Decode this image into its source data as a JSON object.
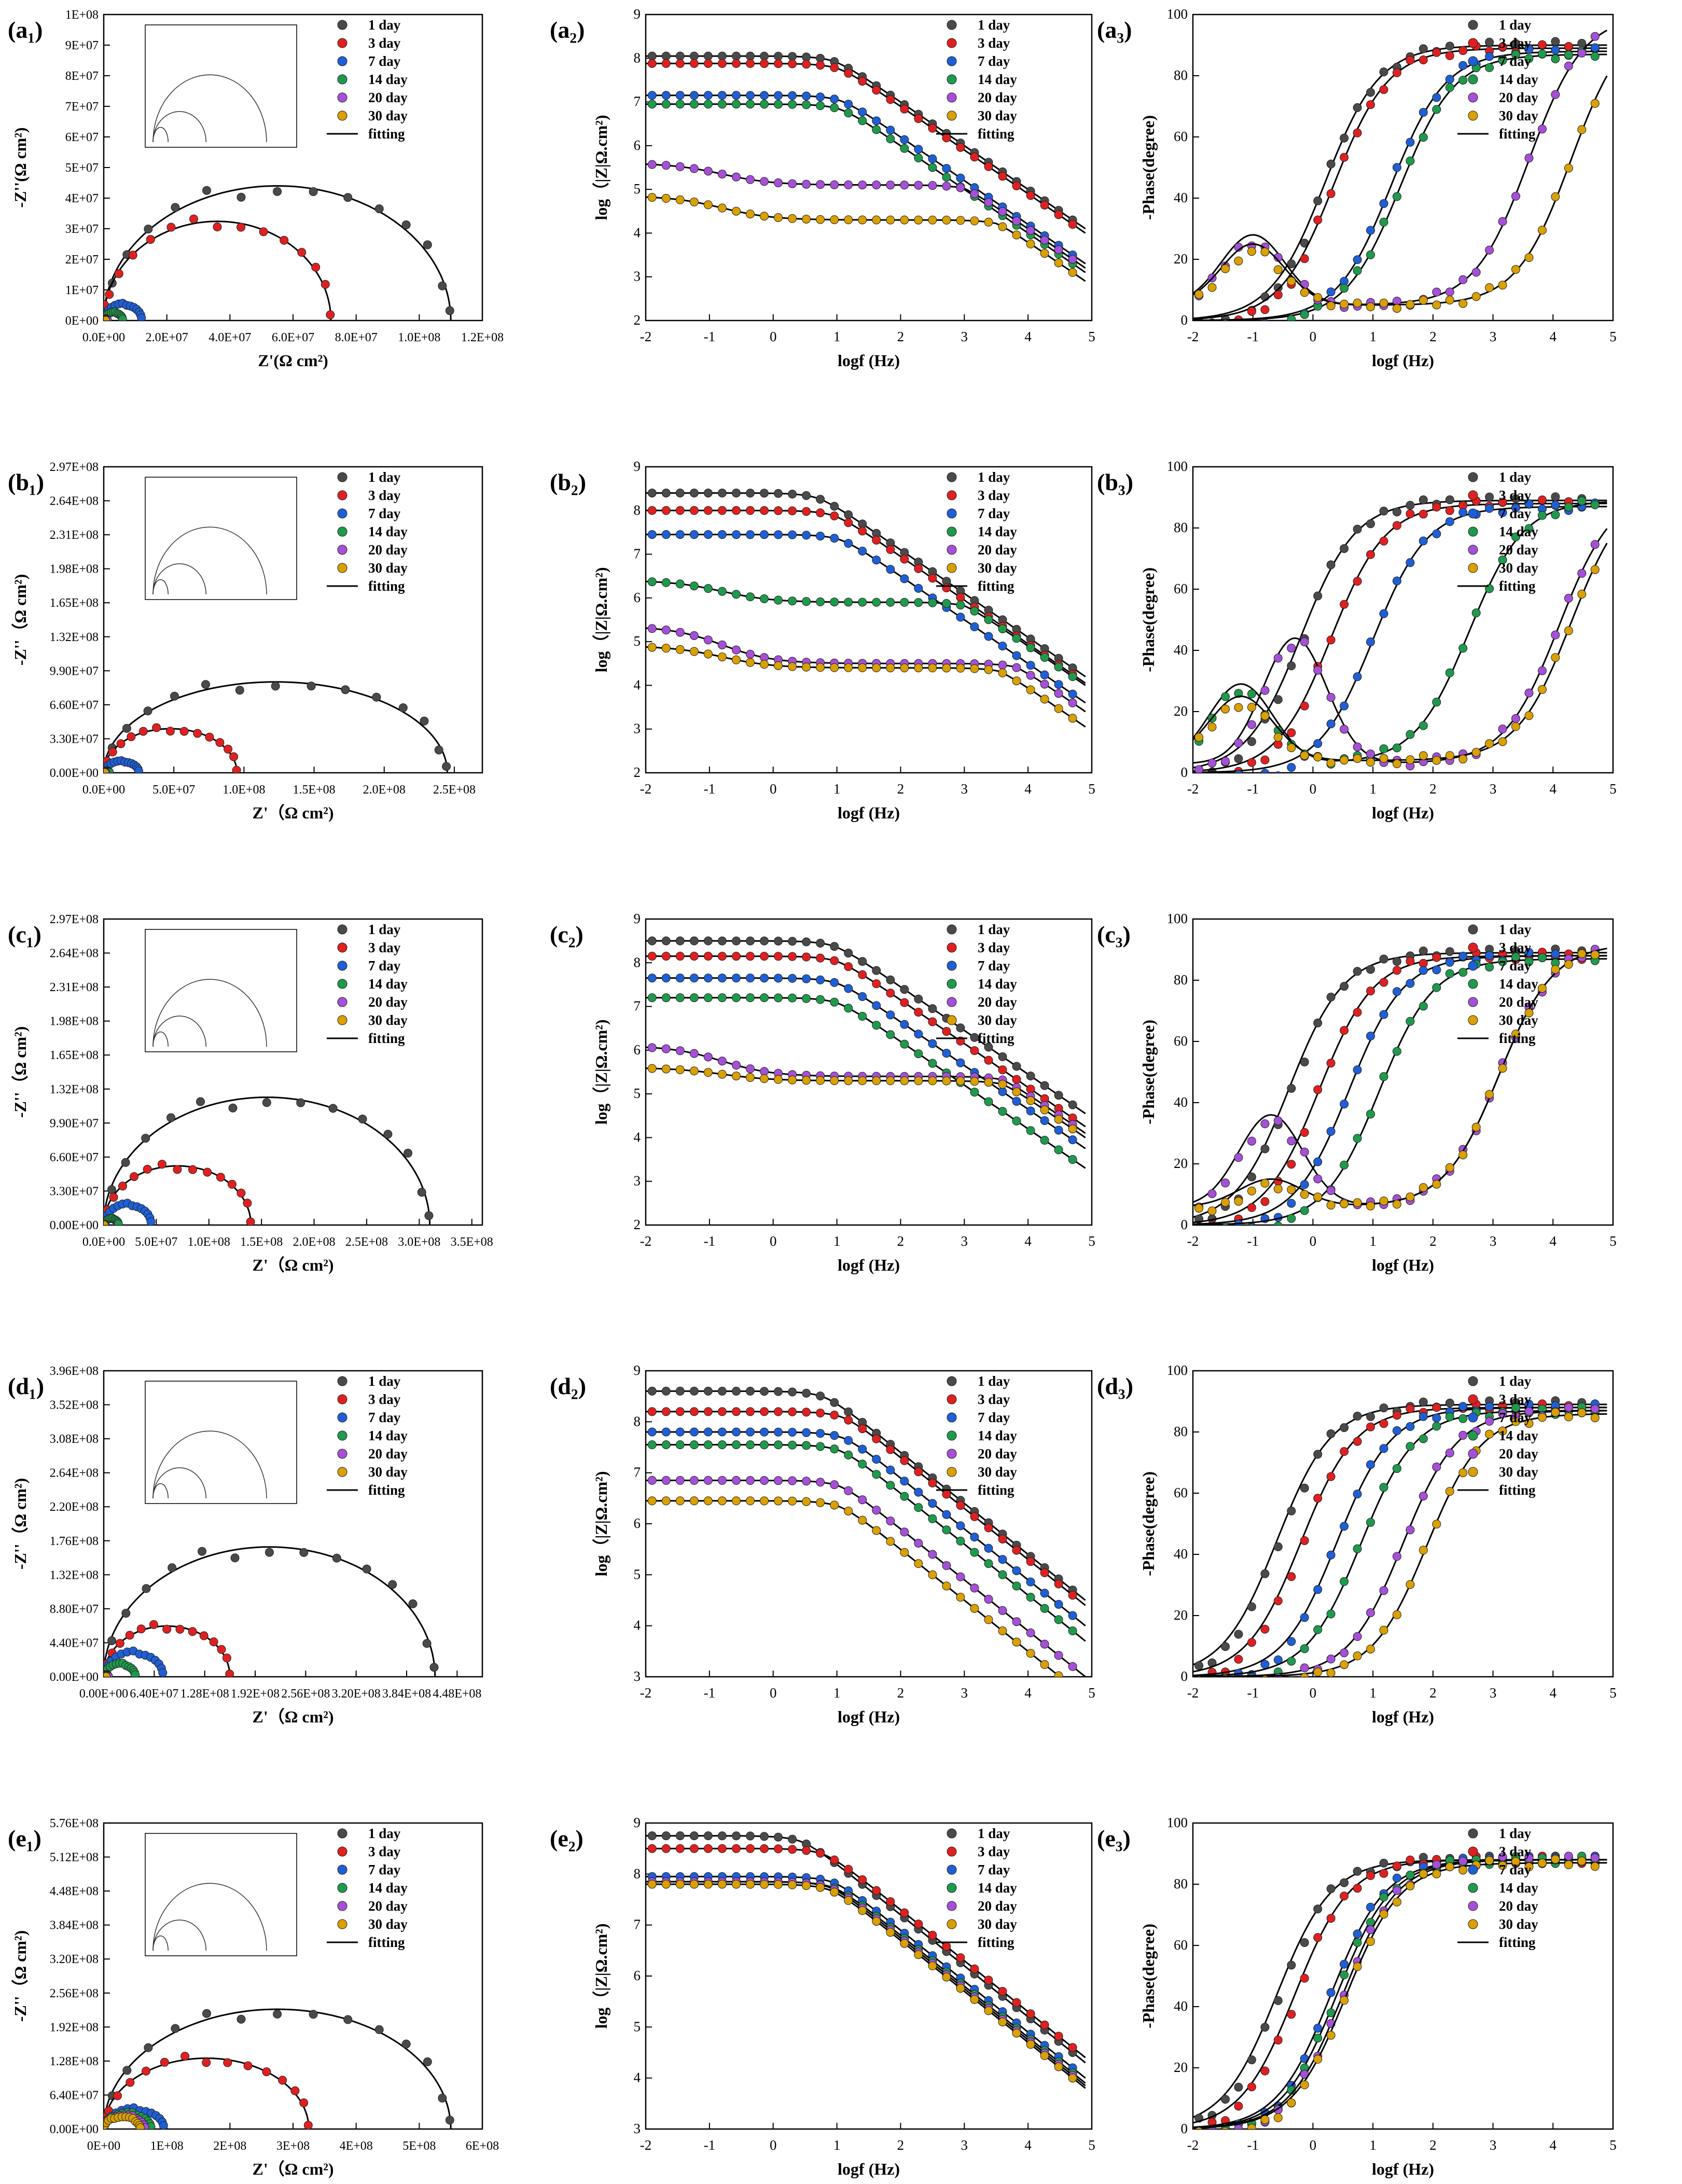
{
  "colors": {
    "d1": "#4a4a4a",
    "d3": "#e02020",
    "d7": "#1f5fd6",
    "d14": "#1f9a4c",
    "d20": "#a64fd8",
    "d30": "#d9a000",
    "fit": "#000000"
  },
  "legend_labels": [
    "1 day",
    "3 day",
    "7 day",
    "14 day",
    "20 day",
    "30 day",
    "fitting"
  ],
  "chart_data": [
    {
      "id": "a1",
      "panel_label": "(a₁)",
      "type": "scatter",
      "kind": "nyquist",
      "xlabel": "Z'(Ω cm²)",
      "ylabel": "-Z''(Ω cm²)",
      "xlim": [
        0,
        120000000
      ],
      "ylim": [
        0,
        100000000
      ],
      "xticks": [
        "0.0E+00",
        "2.0E+07",
        "4.0E+07",
        "6.0E+07",
        "8.0E+07",
        "1.0E+08",
        "1.2E+08"
      ],
      "yticks": [
        "0E+00",
        "1E+07",
        "2E+07",
        "3E+07",
        "4E+07",
        "5E+07",
        "6E+07",
        "7E+07",
        "8E+07",
        "9E+07",
        "1E+08"
      ],
      "series": [
        {
          "name": "1 day",
          "R": 110000000,
          "k": 0.8
        },
        {
          "name": "3 day",
          "R": 72000000,
          "k": 0.9
        },
        {
          "name": "7 day",
          "R": 12000000,
          "k": 0.9
        },
        {
          "name": "14 day",
          "R": 6000000,
          "k": 0.9
        },
        {
          "name": "20 day",
          "R": 1200000,
          "k": 0.9
        },
        {
          "name": "30 day",
          "R": 600000,
          "k": 0.9
        }
      ]
    },
    {
      "id": "a2",
      "panel_label": "(a₂)",
      "type": "line",
      "kind": "bode_mod",
      "xlabel": "logf (Hz)",
      "ylabel": "log（|Z|Ω.cm²)",
      "xlim": [
        -2,
        5
      ],
      "ylim": [
        2,
        9
      ],
      "xticks": [
        "-2",
        "-1",
        "0",
        "1",
        "2",
        "3",
        "4",
        "5"
      ],
      "yticks": [
        "2",
        "3",
        "4",
        "5",
        "6",
        "7",
        "8",
        "9"
      ],
      "series": [
        {
          "name": "1 day",
          "p": [
            8.05,
            8.0
          ]
        },
        {
          "name": "3 day",
          "p": [
            7.88,
            7.9
          ]
        },
        {
          "name": "7 day",
          "p": [
            7.15,
            7.2
          ]
        },
        {
          "name": "14 day",
          "p": [
            6.95,
            7.0
          ]
        },
        {
          "name": "20 day",
          "p": [
            5.6,
            5.1,
            3.2,
            4.9
          ]
        },
        {
          "name": "30 day",
          "p": [
            4.85,
            4.3,
            3.6,
            4.2
          ]
        }
      ]
    },
    {
      "id": "a3",
      "panel_label": "(a₃)",
      "type": "line",
      "kind": "bode_phase",
      "xlabel": "logf (Hz)",
      "ylabel": "-Phase(degree)",
      "xlim": [
        -2,
        5
      ],
      "ylim": [
        0,
        100
      ],
      "xticks": [
        "-2",
        "-1",
        "0",
        "1",
        "2",
        "3",
        "4",
        "5"
      ],
      "yticks": [
        "0",
        "20",
        "40",
        "60",
        "80",
        "100"
      ],
      "series": [
        {
          "name": "1 day",
          "p": [
            0.2,
            90
          ]
        },
        {
          "name": "3 day",
          "p": [
            0.35,
            89
          ]
        },
        {
          "name": "7 day",
          "p": [
            1.3,
            88
          ]
        },
        {
          "name": "14 day",
          "p": [
            1.45,
            87
          ]
        },
        {
          "name": "20 day",
          "p": [
            3.6,
            95,
            -1.0,
            23,
            5
          ]
        },
        {
          "name": "30 day",
          "p": [
            4.3,
            95,
            -1.0,
            20,
            5
          ]
        }
      ]
    },
    {
      "id": "b1",
      "panel_label": "(b₁)",
      "type": "scatter",
      "kind": "nyquist",
      "xlabel": "Z'（Ω cm²)",
      "ylabel": "-Z''（Ω cm²)",
      "xlim": [
        0,
        270000000
      ],
      "ylim": [
        0,
        297000000
      ],
      "xticks": [
        "0.0E+00",
        "5.0E+07",
        "1.0E+08",
        "1.5E+08",
        "2.0E+08",
        "2.5E+08"
      ],
      "yticks": [
        "0.00E+00",
        "3.30E+07",
        "6.60E+07",
        "9.90E+07",
        "1.32E+08",
        "1.65E+08",
        "1.98E+08",
        "2.31E+08",
        "2.64E+08",
        "2.97E+08"
      ],
      "series": [
        {
          "name": "1 day",
          "R": 245000000,
          "k": 0.72
        },
        {
          "name": "3 day",
          "R": 95000000,
          "k": 0.9
        },
        {
          "name": "7 day",
          "R": 25000000,
          "k": 0.9
        },
        {
          "name": "14 day",
          "R": 4000000,
          "k": 0.9
        },
        {
          "name": "20 day",
          "R": 1500000,
          "k": 0.9
        },
        {
          "name": "30 day",
          "R": 800000,
          "k": 0.9
        }
      ]
    },
    {
      "id": "b2",
      "panel_label": "(b₂)",
      "type": "line",
      "kind": "bode_mod",
      "xlabel": "logf (Hz)",
      "ylabel": "log（|Z|Ω.cm²)",
      "xlim": [
        -2,
        5
      ],
      "ylim": [
        2,
        9
      ],
      "xticks": [
        "-2",
        "-1",
        "0",
        "1",
        "2",
        "3",
        "4",
        "5"
      ],
      "yticks": [
        "2",
        "3",
        "4",
        "5",
        "6",
        "7",
        "8",
        "9"
      ],
      "series": [
        {
          "name": "1 day",
          "p": [
            8.4,
            8.1
          ]
        },
        {
          "name": "3 day",
          "p": [
            8.0,
            7.95
          ]
        },
        {
          "name": "7 day",
          "p": [
            7.45,
            7.5
          ]
        },
        {
          "name": "14 day",
          "p": [
            6.4,
            5.9,
            3.0,
            5.9
          ]
        },
        {
          "name": "20 day",
          "p": [
            5.35,
            4.5,
            3.8,
            4.5
          ]
        },
        {
          "name": "30 day",
          "p": [
            4.9,
            4.4,
            3.6,
            4.35
          ]
        }
      ]
    },
    {
      "id": "b3",
      "panel_label": "(b₃)",
      "type": "line",
      "kind": "bode_phase",
      "xlabel": "logf (Hz)",
      "ylabel": "-Phase(degree)",
      "xlim": [
        -2,
        5
      ],
      "ylim": [
        0,
        100
      ],
      "xticks": [
        "-2",
        "-1",
        "0",
        "1",
        "2",
        "3",
        "4",
        "5"
      ],
      "yticks": [
        "0",
        "20",
        "40",
        "60",
        "80",
        "100"
      ],
      "series": [
        {
          "name": "1 day",
          "p": [
            -0.2,
            89
          ]
        },
        {
          "name": "3 day",
          "p": [
            0.3,
            88
          ]
        },
        {
          "name": "7 day",
          "p": [
            1.0,
            87
          ]
        },
        {
          "name": "14 day",
          "p": [
            2.6,
            86,
            -1.2,
            26,
            3
          ]
        },
        {
          "name": "20 day",
          "p": [
            4.1,
            90,
            -0.3,
            41,
            3
          ]
        },
        {
          "name": "30 day",
          "p": [
            4.3,
            90,
            -1.2,
            21,
            4
          ]
        }
      ]
    },
    {
      "id": "c1",
      "panel_label": "(c₁)",
      "type": "scatter",
      "kind": "nyquist",
      "xlabel": "Z'（Ω cm²)",
      "ylabel": "-Z''（Ω cm²)",
      "xlim": [
        0,
        360000000
      ],
      "ylim": [
        0,
        297000000
      ],
      "xticks": [
        "0.0E+00",
        "5.0E+07",
        "1.0E+08",
        "1.5E+08",
        "2.0E+08",
        "2.5E+08",
        "3.0E+08",
        "3.5E+08"
      ],
      "yticks": [
        "0.00E+00",
        "3.30E+07",
        "6.60E+07",
        "9.90E+07",
        "1.32E+08",
        "1.65E+08",
        "1.98E+08",
        "2.31E+08",
        "2.64E+08",
        "2.97E+08"
      ],
      "series": [
        {
          "name": "1 day",
          "R": 310000000,
          "k": 0.8
        },
        {
          "name": "3 day",
          "R": 140000000,
          "k": 0.82
        },
        {
          "name": "7 day",
          "R": 45000000,
          "k": 0.9
        },
        {
          "name": "14 day",
          "R": 14000000,
          "k": 0.9
        },
        {
          "name": "20 day",
          "R": 1200000,
          "k": 0.9
        },
        {
          "name": "30 day",
          "R": 400000,
          "k": 0.9
        }
      ]
    },
    {
      "id": "c2",
      "panel_label": "(c₂)",
      "type": "line",
      "kind": "bode_mod",
      "xlabel": "logf (Hz)",
      "ylabel": "log（|Z|Ω.cm²)",
      "xlim": [
        -2,
        5
      ],
      "ylim": [
        2,
        9
      ],
      "xticks": [
        "-2",
        "-1",
        "0",
        "1",
        "2",
        "3",
        "4",
        "5"
      ],
      "yticks": [
        "2",
        "3",
        "4",
        "5",
        "6",
        "7",
        "8",
        "9"
      ],
      "series": [
        {
          "name": "1 day",
          "p": [
            8.5,
            8.45
          ]
        },
        {
          "name": "3 day",
          "p": [
            8.15,
            8.15
          ]
        },
        {
          "name": "7 day",
          "p": [
            7.65,
            7.65
          ]
        },
        {
          "name": "14 day",
          "p": [
            7.2,
            7.2
          ]
        },
        {
          "name": "20 day",
          "p": [
            6.1,
            5.4,
            3.6,
            5.4
          ]
        },
        {
          "name": "30 day",
          "p": [
            5.6,
            5.3,
            3.6,
            5.3
          ]
        }
      ]
    },
    {
      "id": "c3",
      "panel_label": "(c₃)",
      "type": "line",
      "kind": "bode_phase",
      "xlabel": "logf (Hz)",
      "ylabel": "-Phase(degree)",
      "xlim": [
        -2,
        5
      ],
      "ylim": [
        0,
        100
      ],
      "xticks": [
        "-2",
        "-1",
        "0",
        "1",
        "2",
        "3",
        "4",
        "5"
      ],
      "yticks": [
        "0",
        "20",
        "40",
        "60",
        "80",
        "100"
      ],
      "series": [
        {
          "name": "1 day",
          "p": [
            -0.4,
            89
          ]
        },
        {
          "name": "3 day",
          "p": [
            0.1,
            88
          ]
        },
        {
          "name": "7 day",
          "p": [
            0.6,
            88
          ]
        },
        {
          "name": "14 day",
          "p": [
            1.1,
            87
          ]
        },
        {
          "name": "20 day",
          "p": [
            3.1,
            86,
            -0.7,
            30,
            6
          ]
        },
        {
          "name": "30 day",
          "p": [
            3.1,
            86,
            -0.7,
            9,
            6
          ]
        }
      ]
    },
    {
      "id": "d1",
      "panel_label": "(d₁)",
      "type": "scatter",
      "kind": "nyquist",
      "xlabel": "Z'（Ω cm²)",
      "ylabel": "-Z''（Ω cm²)",
      "xlim": [
        0,
        480000000
      ],
      "ylim": [
        0,
        396000000
      ],
      "xticks": [
        "0.00E+00",
        "6.40E+07",
        "1.28E+08",
        "1.92E+08",
        "2.56E+08",
        "3.20E+08",
        "3.84E+08",
        "4.48E+08"
      ],
      "yticks": [
        "0.00E+00",
        "4.40E+07",
        "8.80E+07",
        "1.32E+08",
        "1.76E+08",
        "2.20E+08",
        "2.64E+08",
        "3.08E+08",
        "3.52E+08",
        "3.96E+08"
      ],
      "series": [
        {
          "name": "1 day",
          "R": 420000000,
          "k": 0.8
        },
        {
          "name": "3 day",
          "R": 160000000,
          "k": 0.82
        },
        {
          "name": "7 day",
          "R": 75000000,
          "k": 0.85
        },
        {
          "name": "14 day",
          "R": 40000000,
          "k": 0.85
        },
        {
          "name": "20 day",
          "R": 6000000,
          "k": 0.9
        },
        {
          "name": "30 day",
          "R": 3000000,
          "k": 0.9
        }
      ]
    },
    {
      "id": "d2",
      "panel_label": "(d₂)",
      "type": "line",
      "kind": "bode_mod",
      "xlabel": "logf (Hz)",
      "ylabel": "log（|Z|Ω.cm²)",
      "xlim": [
        -2,
        5
      ],
      "ylim": [
        3,
        9
      ],
      "xticks": [
        "-2",
        "-1",
        "0",
        "1",
        "2",
        "3",
        "4",
        "5"
      ],
      "yticks": [
        "3",
        "4",
        "5",
        "6",
        "7",
        "8",
        "9"
      ],
      "series": [
        {
          "name": "1 day",
          "p": [
            8.6,
            8.4
          ]
        },
        {
          "name": "3 day",
          "p": [
            8.2,
            8.3
          ]
        },
        {
          "name": "7 day",
          "p": [
            7.8,
            7.9
          ]
        },
        {
          "name": "14 day",
          "p": [
            7.55,
            7.6
          ]
        },
        {
          "name": "20 day",
          "p": [
            6.85,
            6.9
          ]
        },
        {
          "name": "30 day",
          "p": [
            6.45,
            6.5
          ]
        }
      ]
    },
    {
      "id": "d3",
      "panel_label": "(d₃)",
      "type": "line",
      "kind": "bode_phase",
      "xlabel": "logf (Hz)",
      "ylabel": "-Phase(degree)",
      "xlim": [
        -2,
        5
      ],
      "ylim": [
        0,
        100
      ],
      "xticks": [
        "-2",
        "-1",
        "0",
        "1",
        "2",
        "3",
        "4",
        "5"
      ],
      "yticks": [
        "0",
        "20",
        "40",
        "60",
        "80",
        "100"
      ],
      "series": [
        {
          "name": "1 day",
          "p": [
            -0.6,
            89
          ]
        },
        {
          "name": "3 day",
          "p": [
            -0.2,
            88
          ]
        },
        {
          "name": "7 day",
          "p": [
            0.4,
            88
          ]
        },
        {
          "name": "14 day",
          "p": [
            0.8,
            87
          ]
        },
        {
          "name": "20 day",
          "p": [
            1.5,
            87
          ]
        },
        {
          "name": "30 day",
          "p": [
            1.9,
            86
          ]
        }
      ]
    },
    {
      "id": "e1",
      "panel_label": "(e₁)",
      "type": "scatter",
      "kind": "nyquist",
      "xlabel": "Z'（Ω cm²)",
      "ylabel": "-Z''（Ω cm²)",
      "xlim": [
        0,
        600000000
      ],
      "ylim": [
        0,
        576000000
      ],
      "xticks": [
        "0E+00",
        "1E+08",
        "2E+08",
        "3E+08",
        "4E+08",
        "5E+08",
        "6E+08"
      ],
      "yticks": [
        "0.00E+00",
        "6.40E+07",
        "1.28E+08",
        "1.92E+08",
        "2.56E+08",
        "3.20E+08",
        "3.84E+08",
        "4.48E+08",
        "5.12E+08",
        "5.76E+08"
      ],
      "series": [
        {
          "name": "1 day",
          "R": 550000000,
          "k": 0.82
        },
        {
          "name": "3 day",
          "R": 325000000,
          "k": 0.82
        },
        {
          "name": "7 day",
          "R": 95000000,
          "k": 0.8
        },
        {
          "name": "14 day",
          "R": 75000000,
          "k": 0.8
        },
        {
          "name": "20 day",
          "R": 65000000,
          "k": 0.8
        },
        {
          "name": "30 day",
          "R": 58000000,
          "k": 0.8
        }
      ]
    },
    {
      "id": "e2",
      "panel_label": "(e₂)",
      "type": "line",
      "kind": "bode_mod",
      "xlabel": "logf (Hz)",
      "ylabel": "log（|Z|Ω.cm²)",
      "xlim": [
        -2,
        5
      ],
      "ylim": [
        3,
        9
      ],
      "xticks": [
        "-2",
        "-1",
        "0",
        "1",
        "2",
        "3",
        "4",
        "5"
      ],
      "yticks": [
        "3",
        "4",
        "5",
        "6",
        "7",
        "8",
        "9"
      ],
      "series": [
        {
          "name": "1 day",
          "p": [
            8.75,
            8.2
          ]
        },
        {
          "name": "3 day",
          "p": [
            8.5,
            8.3
          ]
        },
        {
          "name": "7 day",
          "p": [
            7.95,
            7.9
          ]
        },
        {
          "name": "14 day",
          "p": [
            7.85,
            7.8
          ]
        },
        {
          "name": "20 day",
          "p": [
            7.85,
            7.75
          ]
        },
        {
          "name": "30 day",
          "p": [
            7.8,
            7.7
          ]
        }
      ]
    },
    {
      "id": "e3",
      "panel_label": "(e₃)",
      "type": "line",
      "kind": "bode_phase",
      "xlabel": "logf (Hz)",
      "ylabel": "-Phase(degree)",
      "xlim": [
        -2,
        5
      ],
      "ylim": [
        0,
        100
      ],
      "xticks": [
        "-2",
        "-1",
        "0",
        "1",
        "2",
        "3",
        "4",
        "5"
      ],
      "yticks": [
        "0",
        "20",
        "40",
        "60",
        "80",
        "100"
      ],
      "series": [
        {
          "name": "1 day",
          "p": [
            -0.6,
            88
          ]
        },
        {
          "name": "3 day",
          "p": [
            -0.3,
            88
          ]
        },
        {
          "name": "7 day",
          "p": [
            0.3,
            88
          ]
        },
        {
          "name": "14 day",
          "p": [
            0.4,
            88
          ]
        },
        {
          "name": "20 day",
          "p": [
            0.5,
            88
          ]
        },
        {
          "name": "30 day",
          "p": [
            0.55,
            87
          ]
        }
      ]
    }
  ]
}
